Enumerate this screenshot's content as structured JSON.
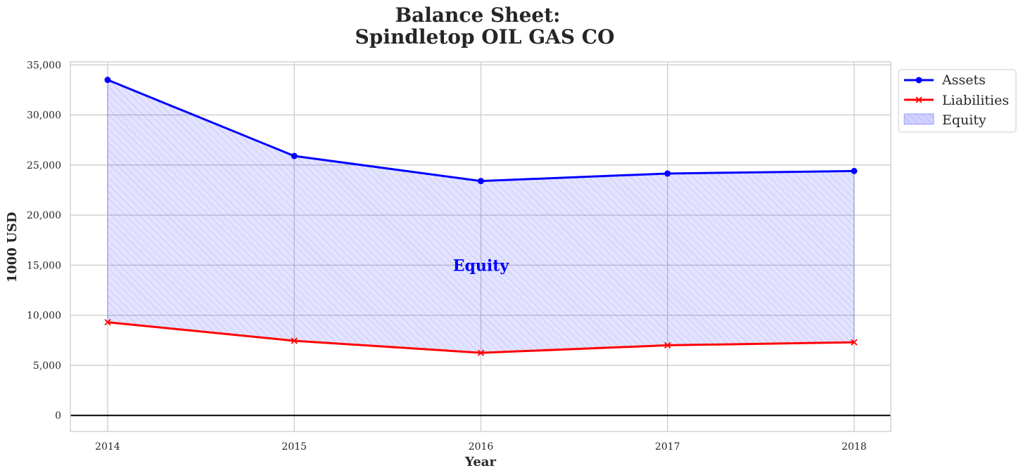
{
  "chart_data": {
    "type": "line",
    "title_line1": "Balance Sheet:",
    "title_line2": "Spindletop OIL GAS CO",
    "xlabel": "Year",
    "ylabel": "1000 USD",
    "categories": [
      "2014",
      "2015",
      "2016",
      "2017",
      "2018"
    ],
    "ylim": [
      -1600,
      35300
    ],
    "yticks": [
      0,
      5000,
      10000,
      15000,
      20000,
      25000,
      30000,
      35000
    ],
    "ytick_labels": [
      "0",
      "5,000",
      "10,000",
      "15,000",
      "20,000",
      "25,000",
      "30,000",
      "35,000"
    ],
    "series": [
      {
        "name": "Assets",
        "values": [
          33500,
          25900,
          23400,
          24150,
          24400
        ],
        "color": "#0000ff",
        "marker": "circle"
      },
      {
        "name": "Liabilities",
        "values": [
          9300,
          7450,
          6250,
          7000,
          7300
        ],
        "color": "#ff0000",
        "marker": "x"
      }
    ],
    "fill": {
      "name": "Equity",
      "between": [
        "Assets",
        "Liabilities"
      ],
      "color": "#0000ff",
      "hatch": "////"
    },
    "annotation": {
      "text": "Equity",
      "x": "2016",
      "y": 15000
    },
    "legend": {
      "location": "outside top-right",
      "entries": [
        "Assets",
        "Liabilities",
        "Equity"
      ]
    },
    "grid": true,
    "zero_line": true
  }
}
